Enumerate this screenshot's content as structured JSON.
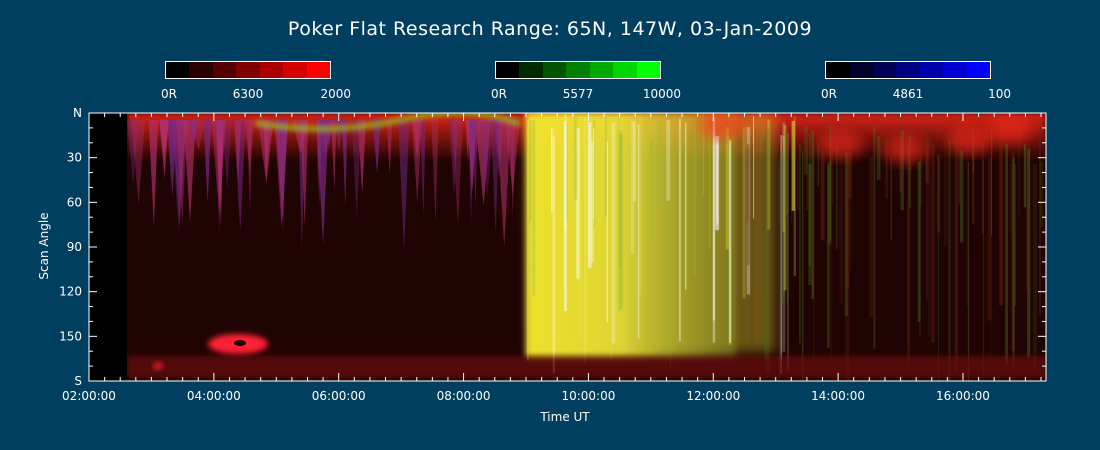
{
  "title": "Poker Flat Research Range: 65N, 147W, 03-Jan-2009",
  "colorbars": [
    {
      "min_label": "0R",
      "mid_label": "6300",
      "max_label": "2000",
      "colors": [
        "#000000",
        "#2b0000",
        "#550000",
        "#800000",
        "#aa0000",
        "#d50000",
        "#ff0000"
      ]
    },
    {
      "min_label": "0R",
      "mid_label": "5577",
      "max_label": "10000",
      "colors": [
        "#000000",
        "#002b00",
        "#005500",
        "#008000",
        "#00aa00",
        "#00d500",
        "#00ff00"
      ]
    },
    {
      "min_label": "0R",
      "mid_label": "4861",
      "max_label": "100",
      "colors": [
        "#000000",
        "#00002b",
        "#000055",
        "#000080",
        "#0000aa",
        "#0000d5",
        "#0000ff"
      ]
    }
  ],
  "chart_data": {
    "type": "heatmap",
    "title": "Poker Flat Research Range: 65N, 147W, 03-Jan-2009",
    "xlabel": "Time UT",
    "ylabel": "Scan Angle",
    "x_tick_labels": [
      "02:00:00",
      "04:00:00",
      "06:00:00",
      "08:00:00",
      "10:00:00",
      "12:00:00",
      "14:00:00",
      "16:00:00"
    ],
    "x_tick_hours": [
      2,
      4,
      6,
      8,
      10,
      12,
      14,
      16
    ],
    "xlim_hours": [
      2.0,
      17.33
    ],
    "data_start_hour": 2.38,
    "y_tick_labels": [
      "N",
      "30",
      "60",
      "90",
      "120",
      "150",
      "S"
    ],
    "y_tick_values": [
      0,
      30,
      60,
      90,
      120,
      150,
      180
    ],
    "ylim": [
      0,
      180
    ],
    "event_onset_hour": 9.0,
    "grid": false
  }
}
